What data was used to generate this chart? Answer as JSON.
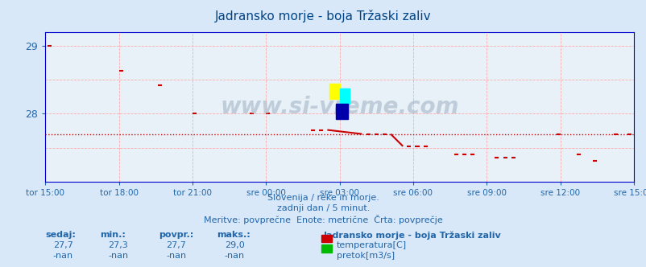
{
  "title": "Jadransko morje - boja Tržaski zaliv",
  "bg_color": "#d8e8f8",
  "plot_bg_color": "#e8f0f8",
  "grid_color": "#ffaaaa",
  "avg_line_y": 27.7,
  "avg_line_color": "#cc0000",
  "temp_color": "#cc0000",
  "xlim": [
    0,
    288
  ],
  "ylim": [
    27.0,
    29.2
  ],
  "xtick_positions": [
    0,
    36,
    72,
    108,
    144,
    180,
    216,
    252,
    288
  ],
  "xtick_labels": [
    "tor 15:00",
    "tor 18:00",
    "tor 21:00",
    "sre 00:00",
    "sre 03:00",
    "sre 06:00",
    "sre 09:00",
    "sre 12:00",
    "sre 15:00"
  ],
  "watermark": "www.si-vreme.com",
  "subtitle1": "Slovenija / reke in morje.",
  "subtitle2": "zadnji dan / 5 minut.",
  "subtitle3": "Meritve: povprečne  Enote: metrične  Črta: povprečje",
  "legend_title": "Jadransko morje - boja Tržaski zaliv",
  "legend_color1": "#cc0000",
  "legend_label1": "temperatura[C]",
  "legend_color2": "#00bb00",
  "legend_label2": "pretok[m3/s]",
  "stats_headers": [
    "sedaj:",
    "min.:",
    "povpr.:",
    "maks.:"
  ],
  "stats_row1": [
    "27,7",
    "27,3",
    "27,7",
    "29,0"
  ],
  "stats_row2": [
    "-nan",
    "-nan",
    "-nan",
    "-nan"
  ],
  "title_color": "#004488",
  "text_color": "#2266aa",
  "tick_color": "#2266aa",
  "spine_color": "#0000cc",
  "scatter_x": [
    1,
    3,
    36,
    38,
    55,
    57,
    72,
    74,
    100,
    102,
    108,
    110,
    130,
    132,
    134,
    136,
    138,
    155,
    157,
    159,
    161,
    163,
    165,
    167,
    169,
    175,
    177,
    179,
    181,
    183,
    185,
    187,
    200,
    202,
    204,
    206,
    208,
    210,
    220,
    222,
    224,
    226,
    228,
    230,
    250,
    252,
    260,
    262,
    268,
    270,
    278,
    280,
    285,
    287
  ],
  "scatter_y": [
    29.0,
    29.0,
    28.63,
    28.63,
    28.42,
    28.42,
    28.0,
    28.0,
    28.0,
    28.0,
    28.0,
    28.0,
    27.76,
    27.76,
    27.76,
    27.76,
    27.76,
    27.7,
    27.7,
    27.7,
    27.7,
    27.7,
    27.7,
    27.7,
    27.7,
    27.52,
    27.52,
    27.52,
    27.52,
    27.52,
    27.52,
    27.52,
    27.4,
    27.4,
    27.4,
    27.4,
    27.4,
    27.4,
    27.35,
    27.35,
    27.35,
    27.35,
    27.35,
    27.35,
    27.7,
    27.7,
    27.4,
    27.4,
    27.3,
    27.3,
    27.7,
    27.7,
    27.7,
    27.7
  ]
}
